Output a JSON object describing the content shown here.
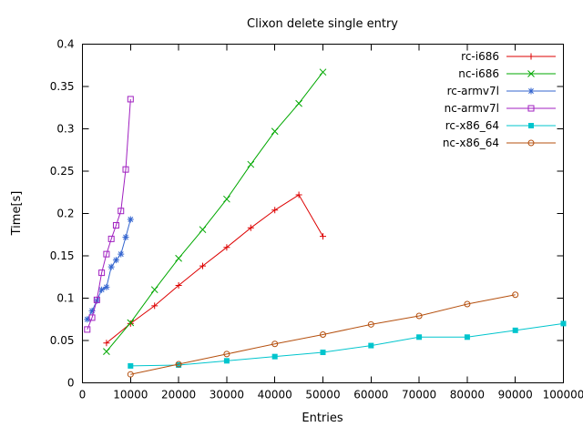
{
  "title": "Clixon delete single entry",
  "chart_data": {
    "type": "line",
    "title": "Clixon delete single entry",
    "xlabel": "Entries",
    "ylabel": "Time[s]",
    "xlim": [
      0,
      100000
    ],
    "ylim": [
      0,
      0.4
    ],
    "grid": false,
    "legend_position": "top-right-inside",
    "xticks": {
      "values": [
        0,
        10000,
        20000,
        30000,
        40000,
        50000,
        60000,
        70000,
        80000,
        90000,
        100000
      ],
      "labels": [
        "0",
        "10000",
        "20000",
        "30000",
        "40000",
        "50000",
        "60000",
        "70000",
        "80000",
        "90000",
        "100000"
      ]
    },
    "yticks": {
      "values": [
        0,
        0.05,
        0.1,
        0.15,
        0.2,
        0.25,
        0.3,
        0.35,
        0.4
      ],
      "labels": [
        "0",
        "0.05",
        "0.1",
        "0.15",
        "0.2",
        "0.25",
        "0.3",
        "0.35",
        "0.4"
      ]
    },
    "series": [
      {
        "name": "rc-i686",
        "color": "#dd0000",
        "marker": "plus",
        "x": [
          5000,
          10000,
          15000,
          20000,
          25000,
          30000,
          35000,
          40000,
          45000,
          50000
        ],
        "y": [
          0.047,
          0.07,
          0.091,
          0.115,
          0.138,
          0.16,
          0.183,
          0.204,
          0.222,
          0.173
        ]
      },
      {
        "name": "nc-i686",
        "color": "#00a800",
        "marker": "cross",
        "x": [
          5000,
          10000,
          15000,
          20000,
          25000,
          30000,
          35000,
          40000,
          45000,
          50000
        ],
        "y": [
          0.037,
          0.071,
          0.11,
          0.147,
          0.181,
          0.217,
          0.258,
          0.297,
          0.33,
          0.367
        ]
      },
      {
        "name": "rc-armv7l",
        "color": "#3465cf",
        "marker": "asterisk",
        "x": [
          1000,
          2000,
          3000,
          4000,
          5000,
          6000,
          7000,
          8000,
          9000,
          10000
        ],
        "y": [
          0.075,
          0.085,
          0.097,
          0.11,
          0.113,
          0.137,
          0.145,
          0.152,
          0.172,
          0.193
        ]
      },
      {
        "name": "nc-armv7l",
        "color": "#a020c0",
        "marker": "square-open",
        "x": [
          1000,
          2000,
          3000,
          4000,
          5000,
          6000,
          7000,
          8000,
          9000,
          10000
        ],
        "y": [
          0.063,
          0.077,
          0.098,
          0.13,
          0.152,
          0.17,
          0.186,
          0.203,
          0.252,
          0.335
        ]
      },
      {
        "name": "rc-x86_64",
        "color": "#00c5cd",
        "marker": "square-filled",
        "x": [
          10000,
          20000,
          30000,
          40000,
          50000,
          60000,
          70000,
          80000,
          90000,
          100000
        ],
        "y": [
          0.02,
          0.021,
          0.026,
          0.031,
          0.036,
          0.044,
          0.054,
          0.054,
          0.062,
          0.07
        ]
      },
      {
        "name": "nc-x86_64",
        "color": "#b5500f",
        "marker": "circle-open",
        "x": [
          10000,
          20000,
          30000,
          40000,
          50000,
          60000,
          70000,
          80000,
          90000
        ],
        "y": [
          0.01,
          0.022,
          0.034,
          0.046,
          0.057,
          0.069,
          0.079,
          0.093,
          0.104
        ]
      }
    ]
  }
}
